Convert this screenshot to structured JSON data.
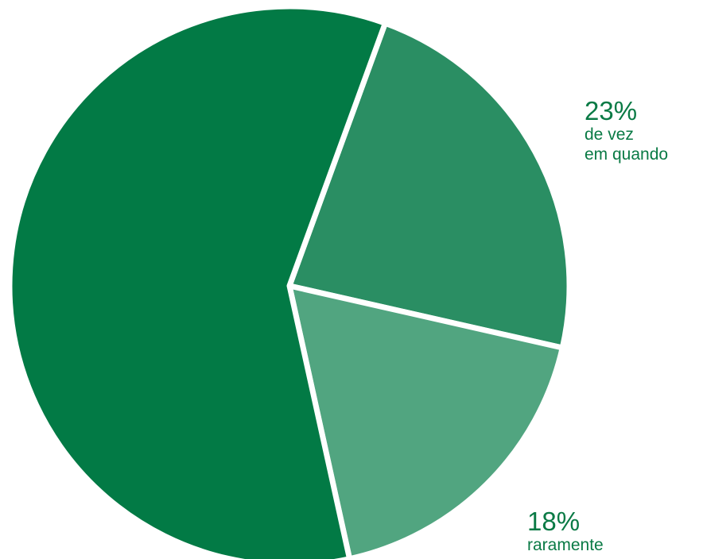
{
  "chart_data": {
    "type": "pie",
    "slices": [
      {
        "pct_label": "23%",
        "label_lines": [
          "de vez",
          "em quando"
        ],
        "value": 23,
        "color": "#2a8e63"
      },
      {
        "pct_label": "18%",
        "label_lines": [
          "raramente"
        ],
        "value": 18,
        "color": "#51a580"
      },
      {
        "value": 59,
        "color": "#027a45"
      }
    ],
    "label_color": "#0a7a45",
    "legend": "none"
  }
}
